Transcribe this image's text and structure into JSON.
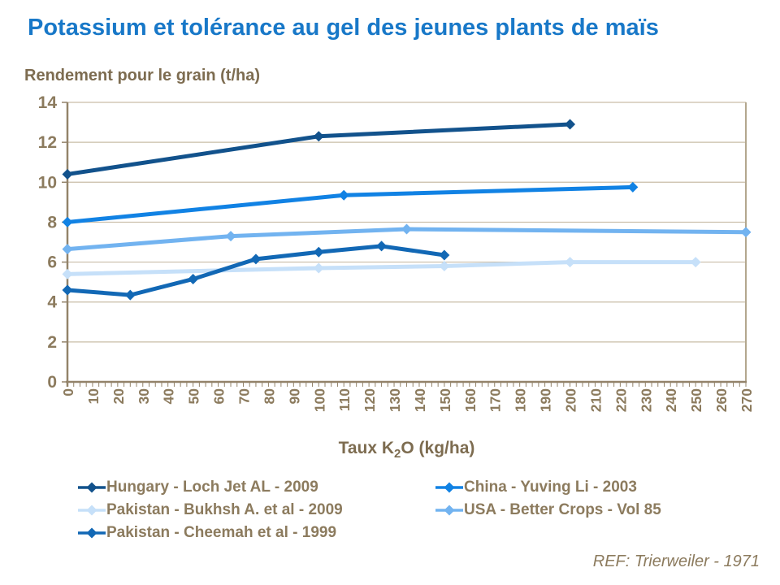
{
  "title": "Potassium et tolérance au gel des jeunes plants de maïs",
  "subtitle": "Rendement pour le grain (t/ha)",
  "footer_ref": "REF: Trierweiler - 1971",
  "colors": {
    "title": "#1878C8",
    "label_brown": "#7D6C50",
    "tick_brown": "#8C7B5E",
    "grid": "#C9BDA7",
    "axis": "#93836A",
    "right_border": "#B3A78E"
  },
  "chart_data": {
    "type": "line",
    "title": "Potassium et tolérance au gel des jeunes plants de maïs",
    "xlabel": "Taux K2O (kg/ha)",
    "xlabel_parts": {
      "pre": "Taux K",
      "sub": "2",
      "post": "O (kg/ha)"
    },
    "ylabel": "Rendement pour le grain (t/ha)",
    "xlim": [
      0,
      270
    ],
    "ylim": [
      0,
      14
    ],
    "x_tick_labels": [
      "0",
      "10",
      "20",
      "30",
      "40",
      "50",
      "60",
      "70",
      "80",
      "90",
      "100",
      "110",
      "120",
      "130",
      "140",
      "150",
      "160",
      "170",
      "180",
      "190",
      "200",
      "210",
      "220",
      "230",
      "240",
      "250",
      "260",
      "270"
    ],
    "x_tick_step": 10,
    "x_minor_tick_step": 2.5,
    "y_tick_labels": [
      "0",
      "2",
      "4",
      "6",
      "8",
      "10",
      "12",
      "14"
    ],
    "grid": true,
    "legend_position": "bottom",
    "marker": "diamond",
    "series": [
      {
        "name": "Hungary - Loch Jet AL - 2009",
        "color": "#12528C",
        "points": [
          [
            0,
            10.4
          ],
          [
            100,
            12.3
          ],
          [
            200,
            12.9
          ]
        ]
      },
      {
        "name": "China - Yuving Li - 2003",
        "color": "#1182E4",
        "points": [
          [
            0,
            8.0
          ],
          [
            110,
            9.35
          ],
          [
            225,
            9.75
          ]
        ]
      },
      {
        "name": "Pakistan - Bukhsh A. et al - 2009",
        "color": "#C6E0F9",
        "points": [
          [
            0,
            5.4
          ],
          [
            100,
            5.7
          ],
          [
            150,
            5.8
          ],
          [
            200,
            6.0
          ],
          [
            250,
            6.0
          ]
        ]
      },
      {
        "name": "USA - Better Crops - Vol 85",
        "color": "#72B3F0",
        "points": [
          [
            0,
            6.65
          ],
          [
            65,
            7.3
          ],
          [
            135,
            7.65
          ],
          [
            270,
            7.5
          ]
        ]
      },
      {
        "name": "Pakistan - Cheemah et al - 1999",
        "color": "#1268B5",
        "points": [
          [
            0,
            4.6
          ],
          [
            25,
            4.35
          ],
          [
            50,
            5.15
          ],
          [
            75,
            6.15
          ],
          [
            100,
            6.5
          ],
          [
            125,
            6.8
          ],
          [
            150,
            6.35
          ]
        ]
      }
    ]
  }
}
